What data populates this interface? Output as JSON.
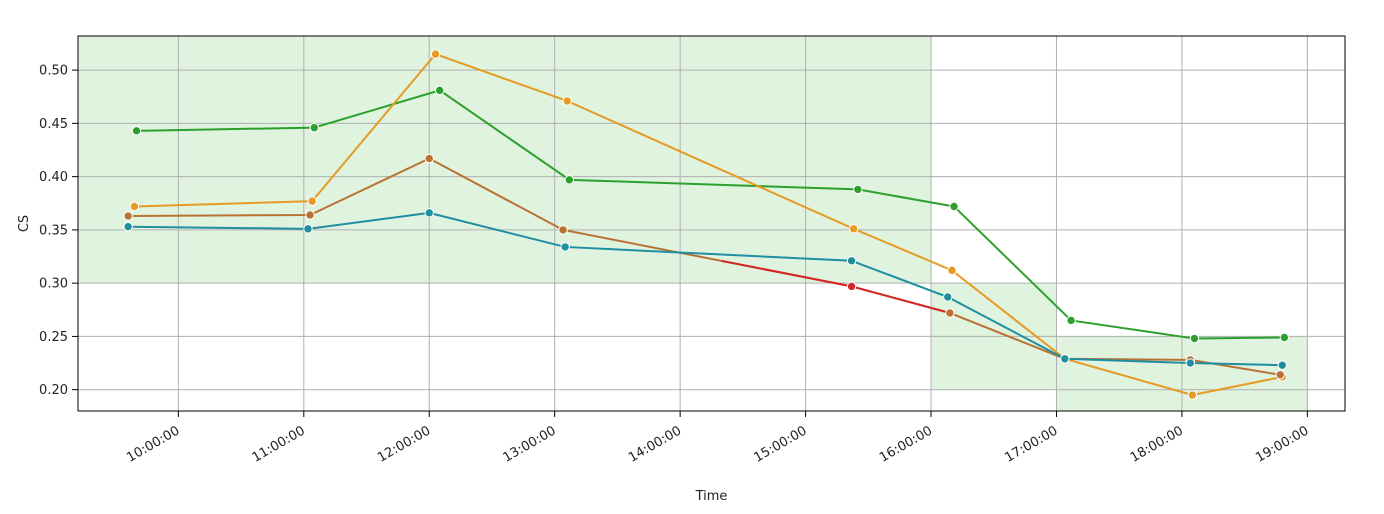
{
  "chart_data": {
    "type": "line",
    "title": "",
    "xlabel": "Time",
    "ylabel": "CS",
    "xlim": [
      "09:12:00",
      "19:18:00"
    ],
    "ylim": [
      0.18,
      0.532
    ],
    "x_ticks": [
      "10:00:00",
      "11:00:00",
      "12:00:00",
      "13:00:00",
      "14:00:00",
      "15:00:00",
      "16:00:00",
      "17:00:00",
      "18:00:00",
      "19:00:00"
    ],
    "y_ticks": [
      "0.20",
      "0.25",
      "0.30",
      "0.35",
      "0.40",
      "0.45",
      "0.50"
    ],
    "grid": true,
    "legend": "none",
    "shaded_regions": [
      {
        "x_start": "09:12:00",
        "x_end": "16:00:00",
        "y_low": 0.3,
        "y_high": 0.532,
        "color": "#e0f3df"
      },
      {
        "x_start": "16:00:00",
        "x_end": "17:00:00",
        "y_low": 0.2,
        "y_high": 0.3,
        "color": "#e0f3df"
      },
      {
        "x_start": "17:00:00",
        "x_end": "19:00:00",
        "y_low": 0.18,
        "y_high": 0.25,
        "color": "#e0f3df"
      }
    ],
    "series": [
      {
        "color": "#2ca02c",
        "points": [
          {
            "x": "09:40:00",
            "y": 0.443
          },
          {
            "x": "11:05:00",
            "y": 0.446
          },
          {
            "x": "12:05:00",
            "y": 0.481
          },
          {
            "x": "13:07:00",
            "y": 0.397
          },
          {
            "x": "15:25:00",
            "y": 0.388
          },
          {
            "x": "16:11:00",
            "y": 0.372
          },
          {
            "x": "17:07:00",
            "y": 0.265
          },
          {
            "x": "18:06:00",
            "y": 0.248
          },
          {
            "x": "18:49:00",
            "y": 0.249
          }
        ]
      },
      {
        "color": "#e69a24",
        "points": [
          {
            "x": "09:39:00",
            "y": 0.372
          },
          {
            "x": "11:04:00",
            "y": 0.377
          },
          {
            "x": "12:03:00",
            "y": 0.515
          },
          {
            "x": "13:06:00",
            "y": 0.471
          },
          {
            "x": "15:23:00",
            "y": 0.351
          },
          {
            "x": "16:10:00",
            "y": 0.312
          },
          {
            "x": "17:04:00",
            "y": 0.229
          },
          {
            "x": "18:05:00",
            "y": 0.195
          },
          {
            "x": "18:48:00",
            "y": 0.212
          }
        ]
      },
      {
        "color": "#b87333",
        "points": [
          {
            "x": "09:36:00",
            "y": 0.363
          },
          {
            "x": "11:03:00",
            "y": 0.364
          },
          {
            "x": "12:00:00",
            "y": 0.417
          },
          {
            "x": "13:04:00",
            "y": 0.35
          },
          {
            "x": "15:22:00",
            "y": 0.297,
            "color": "#d62728"
          },
          {
            "x": "16:09:00",
            "y": 0.272
          },
          {
            "x": "17:04:00",
            "y": 0.229
          },
          {
            "x": "18:04:00",
            "y": 0.228
          },
          {
            "x": "18:47:00",
            "y": 0.214
          }
        ]
      },
      {
        "color": "#1f8fa0",
        "points": [
          {
            "x": "09:36:00",
            "y": 0.353
          },
          {
            "x": "11:02:00",
            "y": 0.351
          },
          {
            "x": "12:00:00",
            "y": 0.366
          },
          {
            "x": "13:05:00",
            "y": 0.334
          },
          {
            "x": "15:22:00",
            "y": 0.321
          },
          {
            "x": "16:08:00",
            "y": 0.287
          },
          {
            "x": "17:04:00",
            "y": 0.229
          },
          {
            "x": "18:04:00",
            "y": 0.225
          },
          {
            "x": "18:48:00",
            "y": 0.223
          }
        ]
      }
    ],
    "segment_overrides": [
      {
        "series_index": 2,
        "from_index": 4,
        "to_index": 5,
        "color": "#d62728"
      },
      {
        "series_index": 2,
        "from_index": 3,
        "to_index": 4,
        "color": "#d62728",
        "partial_from": 0.55
      }
    ]
  }
}
